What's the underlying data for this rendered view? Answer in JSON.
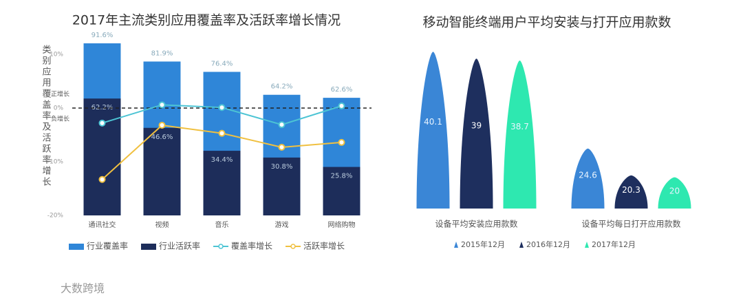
{
  "chart_data": [
    {
      "type": "bar-line",
      "title": "2017年主流类别应用覆盖率及活跃率增长情况",
      "y_label": "类别应用覆盖率及活跃率增长",
      "categories": [
        "通讯社交",
        "视频",
        "音乐",
        "游戏",
        "网络购物"
      ],
      "series": [
        {
          "name": "行业覆盖率",
          "color": "#2f86d8",
          "kind": "bar",
          "values": [
            91.6,
            81.9,
            76.4,
            64.2,
            62.6
          ],
          "value_labels": [
            "91.6%",
            "81.9%",
            "76.4%",
            "64.2%",
            "62.6%"
          ]
        },
        {
          "name": "行业活跃率",
          "color": "#1d2d5a",
          "kind": "bar",
          "values": [
            62.2,
            46.6,
            34.4,
            30.8,
            25.8
          ],
          "value_labels": [
            "62.2%",
            "46.6%",
            "34.4%",
            "30.8%",
            "25.8%"
          ]
        },
        {
          "name": "覆盖率增长",
          "color": "#4cc4d4",
          "kind": "line",
          "axis": "y2",
          "values": [
            -2.8,
            0.6,
            0.1,
            -3.1,
            0.4
          ]
        },
        {
          "name": "活跃率增长",
          "color": "#f0c040",
          "kind": "line",
          "axis": "y2",
          "values": [
            -13.3,
            -3.2,
            -4.7,
            -7.3,
            -6.4
          ]
        }
      ],
      "ylim": [
        0,
        100
      ],
      "y2lim": [
        -20,
        15
      ],
      "y2ticks": [
        {
          "value": -20,
          "label": "-20%"
        },
        {
          "value": -10,
          "label": "-10%"
        },
        {
          "value": 0,
          "label": "0%"
        },
        {
          "value": 10,
          "label": "10%"
        }
      ],
      "annotations": [
        "正增长",
        "负增长"
      ]
    },
    {
      "type": "peak",
      "title": "移动智能终端用户平均安装与打开应用款数",
      "categories": [
        "设备平均安装应用款数",
        "设备平均每日打开应用款数"
      ],
      "series": [
        {
          "name": "2015年12月",
          "color": "#3a86d6",
          "values": [
            40.1,
            24.6
          ]
        },
        {
          "name": "2016年12月",
          "color": "#1e2f5e",
          "values": [
            39.0,
            20.3
          ]
        },
        {
          "name": "2017年12月",
          "color": "#2ee8b0",
          "values": [
            38.7,
            20.0
          ]
        }
      ],
      "ylim": [
        15,
        42
      ]
    }
  ],
  "watermark": "大数跨境"
}
